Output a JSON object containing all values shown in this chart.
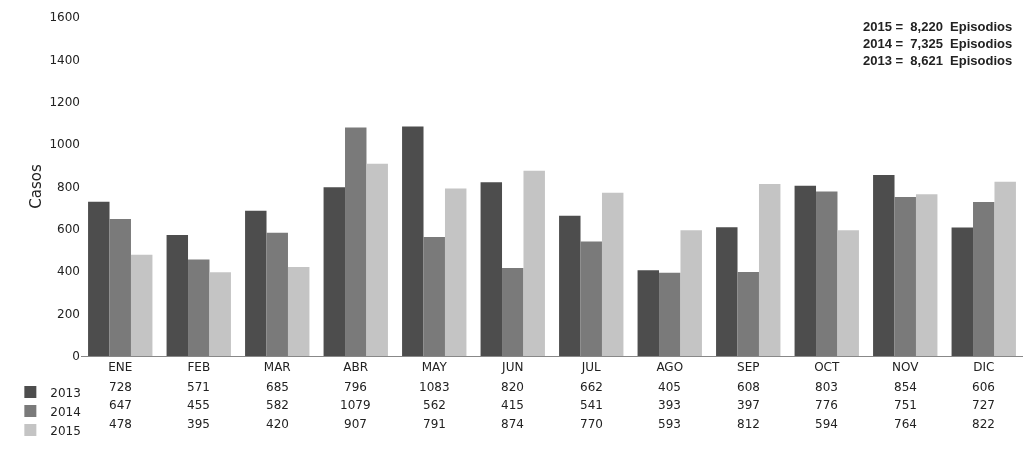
{
  "chart_data": {
    "type": "bar",
    "ylabel": "Casos",
    "categories": [
      "ENE",
      "FEB",
      "MAR",
      "ABR",
      "MAY",
      "JUN",
      "JUL",
      "AGO",
      "SEP",
      "OCT",
      "NOV",
      "DIC"
    ],
    "series": [
      {
        "name": "2013",
        "color": "#4d4d4d",
        "values": [
          728,
          571,
          685,
          796,
          1083,
          820,
          662,
          405,
          608,
          803,
          854,
          606
        ]
      },
      {
        "name": "2014",
        "color": "#7a7a7a",
        "values": [
          647,
          455,
          582,
          1079,
          562,
          415,
          541,
          393,
          397,
          776,
          751,
          727
        ]
      },
      {
        "name": "2015",
        "color": "#c4c4c4",
        "values": [
          478,
          395,
          420,
          907,
          791,
          874,
          770,
          593,
          812,
          594,
          764,
          822
        ]
      }
    ],
    "ylim": [
      0,
      1600
    ],
    "yticks": [
      0,
      200,
      400,
      600,
      800,
      1000,
      1200,
      1400,
      1600
    ],
    "grid": false,
    "legend": "bottom left",
    "data_labels": true,
    "annotations": [
      "2015 =  8,220  Episodios",
      "2014 =  7,325  Episodios",
      "2013 =  8,621  Episodios"
    ]
  }
}
